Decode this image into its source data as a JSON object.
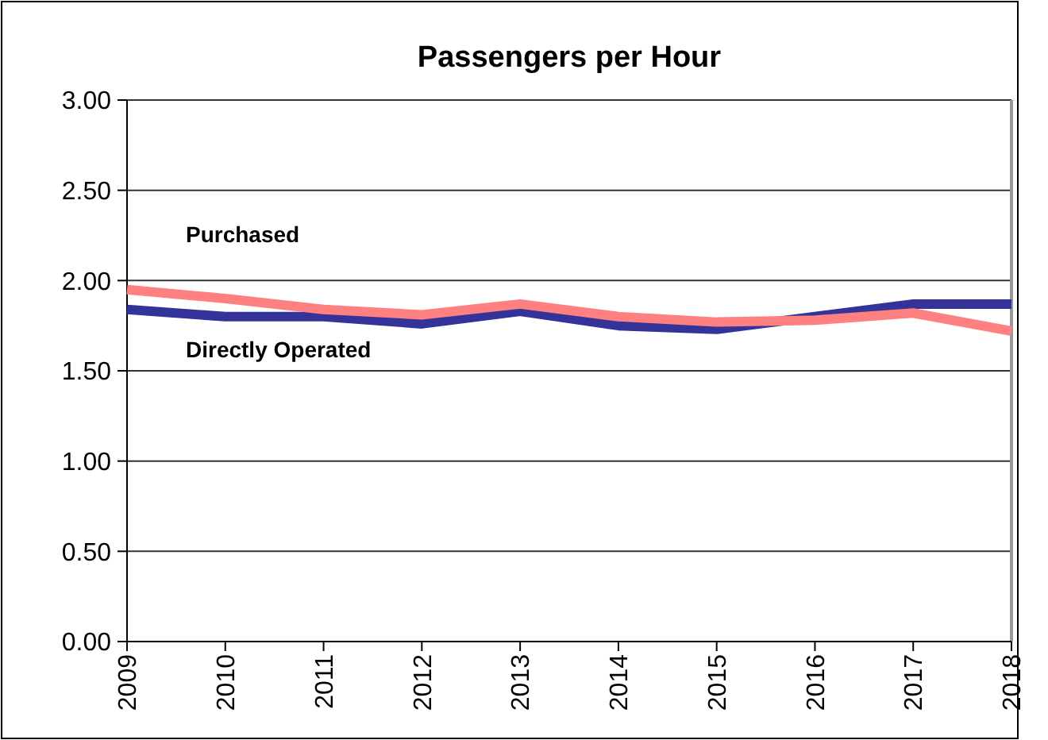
{
  "chart_data": {
    "type": "line",
    "title": "Passengers per Hour",
    "categories": [
      "2009",
      "2010",
      "2011",
      "2012",
      "2013",
      "2014",
      "2015",
      "2016",
      "2017",
      "2018"
    ],
    "series": [
      {
        "name": "Directly Operated",
        "color": "#333399",
        "values": [
          1.84,
          1.8,
          1.8,
          1.76,
          1.83,
          1.75,
          1.73,
          1.8,
          1.87,
          1.87
        ]
      },
      {
        "name": "Purchased",
        "color": "#ff8080",
        "values": [
          1.95,
          1.9,
          1.84,
          1.81,
          1.87,
          1.8,
          1.77,
          1.78,
          1.82,
          1.72
        ]
      }
    ],
    "ylim": [
      0,
      3
    ],
    "yticks": [
      {
        "value": 0,
        "label": "0.00"
      },
      {
        "value": 0.5,
        "label": "0.50"
      },
      {
        "value": 1,
        "label": "1.00"
      },
      {
        "value": 1.5,
        "label": "1.50"
      },
      {
        "value": 2,
        "label": "2.00"
      },
      {
        "value": 2.5,
        "label": "2.50"
      },
      {
        "value": 3,
        "label": "3.00"
      }
    ],
    "grid": "y",
    "legend": false,
    "marker": "none",
    "line_style": "solid"
  }
}
